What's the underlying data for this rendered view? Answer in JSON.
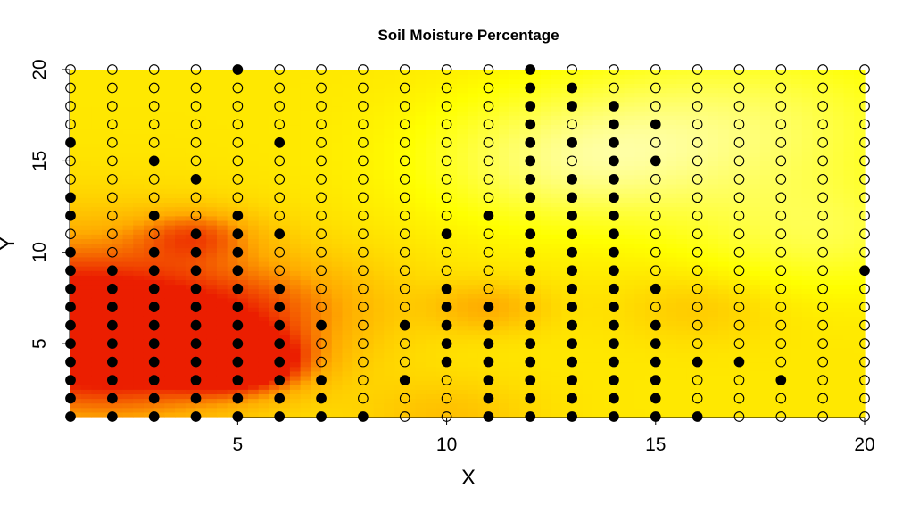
{
  "chart_data": {
    "type": "heatmap",
    "title": "Soil Moisture Percentage",
    "xlabel": "X",
    "ylabel": "Y",
    "xlim": [
      1,
      20
    ],
    "ylim": [
      1,
      20
    ],
    "x_ticks": [
      5,
      10,
      15,
      20
    ],
    "y_ticks": [
      5,
      10,
      15,
      20
    ],
    "grid": false,
    "legend": "none",
    "colors": {
      "background_field": "#ffff00",
      "light_field": "#ffffd8",
      "hot_spot": "#ee2200",
      "orange_region": "#ffa000",
      "point_filled": "#000000",
      "point_open_stroke": "#000000"
    },
    "moisture_field": [
      {
        "x": 1,
        "y": 7,
        "value": 0.85,
        "spread": 3.2
      },
      {
        "x": 2,
        "y": 4,
        "value": 0.6,
        "spread": 2.5
      },
      {
        "x": 5,
        "y": 4,
        "value": 1.0,
        "spread": 1.1
      },
      {
        "x": 4,
        "y": 11,
        "value": 0.45,
        "spread": 1.0
      },
      {
        "x": 6,
        "y": 7,
        "value": 0.35,
        "spread": 2.0
      },
      {
        "x": 11,
        "y": 7,
        "value": 0.35,
        "spread": 1.0
      },
      {
        "x": 10,
        "y": 1,
        "value": 0.25,
        "spread": 1.5
      },
      {
        "x": 13,
        "y": 15,
        "value": -0.5,
        "spread": 2.5
      },
      {
        "x": 17,
        "y": 17,
        "value": -0.45,
        "spread": 3.0
      },
      {
        "x": 19,
        "y": 11,
        "value": -0.35,
        "spread": 2.2
      },
      {
        "x": 16,
        "y": 7,
        "value": 0.2,
        "spread": 1.3
      }
    ],
    "filled_points": {
      "1": [
        1,
        2,
        3,
        4,
        5,
        6,
        7,
        8,
        9,
        10,
        12,
        13,
        16
      ],
      "2": [
        1,
        2,
        3,
        4,
        5,
        6,
        7,
        8,
        9
      ],
      "3": [
        1,
        2,
        3,
        4,
        5,
        6,
        7,
        8,
        9,
        10,
        12,
        15
      ],
      "4": [
        1,
        2,
        3,
        4,
        5,
        6,
        7,
        8,
        9,
        10,
        11,
        14
      ],
      "5": [
        1,
        2,
        3,
        4,
        5,
        6,
        7,
        8,
        9,
        10,
        11,
        12,
        20
      ],
      "6": [
        1,
        2,
        3,
        4,
        5,
        6,
        7,
        8,
        11,
        16
      ],
      "7": [
        1,
        2,
        3,
        6
      ],
      "8": [
        1
      ],
      "9": [
        3,
        6
      ],
      "10": [
        4,
        5,
        6,
        7,
        8,
        11
      ],
      "11": [
        1,
        2,
        3,
        4,
        5,
        6,
        7,
        12
      ],
      "12": [
        1,
        2,
        3,
        4,
        5,
        6,
        7,
        8,
        9,
        10,
        11,
        12,
        13,
        14,
        15,
        16,
        17,
        18,
        19,
        20
      ],
      "13": [
        1,
        2,
        3,
        4,
        5,
        6,
        7,
        8,
        9,
        10,
        11,
        12,
        13,
        14,
        16,
        18,
        19
      ],
      "14": [
        1,
        2,
        3,
        4,
        5,
        6,
        7,
        8,
        9,
        10,
        11,
        12,
        13,
        14,
        15,
        16,
        17,
        18
      ],
      "15": [
        1,
        2,
        3,
        4,
        5,
        6,
        8,
        15,
        17
      ],
      "16": [
        1,
        4
      ],
      "17": [
        4
      ],
      "18": [
        3
      ],
      "19": [],
      "20": [
        9
      ]
    }
  }
}
